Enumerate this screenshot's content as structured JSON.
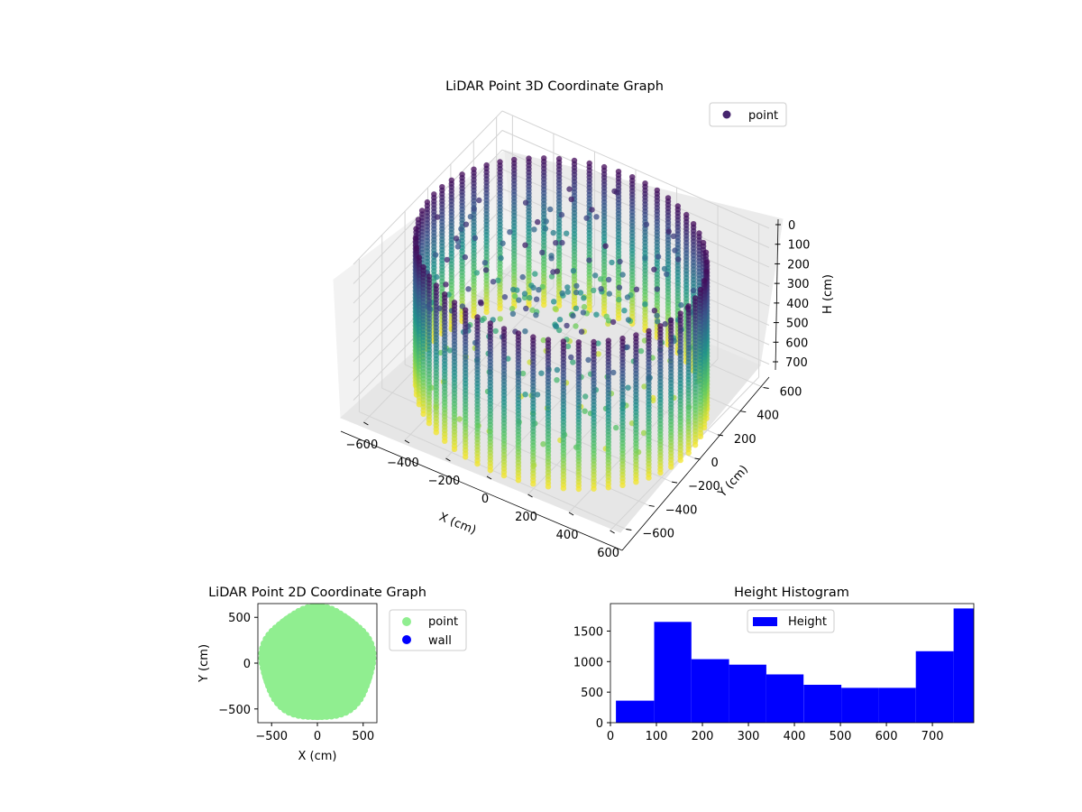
{
  "chart_data": [
    {
      "type": "scatter",
      "projection": "3d",
      "title": "LiDAR Point 3D Coordinate Graph",
      "xlabel": "X (cm)",
      "ylabel": "Y (cm)",
      "zlabel": "H (cm)",
      "x_ticks": [
        "−600",
        "−400",
        "−200",
        "0",
        "200",
        "400",
        "600"
      ],
      "y_ticks": [
        "−600",
        "−400",
        "−200",
        "0",
        "200",
        "400",
        "600"
      ],
      "z_ticks": [
        "0",
        "100",
        "200",
        "300",
        "400",
        "500",
        "600",
        "700"
      ],
      "xlim": [
        -650,
        650
      ],
      "ylim": [
        -650,
        650
      ],
      "zlim": [
        0,
        790
      ],
      "z_inverted": true,
      "colormap": "viridis",
      "grid": true,
      "legend": {
        "position": "top-right",
        "entries": [
          {
            "label": "point",
            "color": "#46256e"
          }
        ]
      },
      "series": [
        {
          "name": "point",
          "shape": "cylindrical room scan: columns around the wall plus scattered interior points",
          "wall_radius_cm": 620,
          "wall_columns": 60,
          "height_range": [
            0,
            790
          ]
        }
      ]
    },
    {
      "type": "scatter",
      "title": "LiDAR Point 2D Coordinate Graph",
      "xlabel": "X (cm)",
      "ylabel": "Y (cm)",
      "x_ticks": [
        "−500",
        "0",
        "500"
      ],
      "y_ticks": [
        "500",
        "0",
        "−500"
      ],
      "xlim": [
        -650,
        650
      ],
      "ylim": [
        -650,
        650
      ],
      "legend": {
        "position": "outside-right",
        "entries": [
          {
            "label": "point",
            "color": "#90ee90"
          },
          {
            "label": "wall",
            "color": "#0000ff"
          }
        ]
      },
      "series": [
        {
          "name": "point",
          "color": "#90ee90",
          "shape": "filled disk",
          "radius_cm": 620
        },
        {
          "name": "wall",
          "color": "#0000ff",
          "values": []
        }
      ]
    },
    {
      "type": "bar",
      "subtype": "histogram",
      "title": "Height Histogram",
      "xlabel": "",
      "ylabel": "",
      "x_ticks": [
        "0",
        "100",
        "200",
        "300",
        "400",
        "500",
        "600",
        "700"
      ],
      "y_ticks": [
        "0",
        "500",
        "1000",
        "1500"
      ],
      "xlim": [
        0,
        790
      ],
      "ylim": [
        0,
        1950
      ],
      "color": "#0000ff",
      "legend": {
        "position": "top-center",
        "entries": [
          {
            "label": "Height",
            "color": "#0000ff"
          }
        ]
      },
      "bins": [
        {
          "start": 12,
          "end": 95,
          "count": 360
        },
        {
          "start": 95,
          "end": 176,
          "count": 1650
        },
        {
          "start": 176,
          "end": 258,
          "count": 1040
        },
        {
          "start": 258,
          "end": 339,
          "count": 950
        },
        {
          "start": 339,
          "end": 420,
          "count": 790
        },
        {
          "start": 420,
          "end": 502,
          "count": 620
        },
        {
          "start": 502,
          "end": 583,
          "count": 570
        },
        {
          "start": 583,
          "end": 664,
          "count": 570
        },
        {
          "start": 664,
          "end": 746,
          "count": 1170
        },
        {
          "start": 746,
          "end": 790,
          "count": 1870
        }
      ]
    }
  ]
}
